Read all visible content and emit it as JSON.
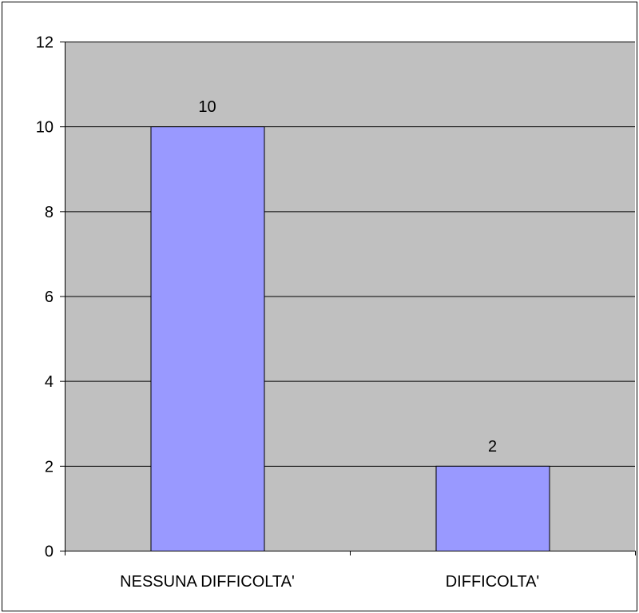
{
  "chart_data": {
    "type": "bar",
    "categories": [
      "NESSUNA DIFFICOLTA'",
      "DIFFICOLTA'"
    ],
    "values": [
      10,
      2
    ],
    "data_labels": [
      "10",
      "2"
    ],
    "title": "",
    "xlabel": "",
    "ylabel": "",
    "ylim": [
      0,
      12
    ],
    "yticks": [
      "0",
      "2",
      "4",
      "6",
      "8",
      "10",
      "12"
    ],
    "grid": true,
    "legend": "none",
    "colors": {
      "bar_fill": "#9999ff",
      "plot_background": "#c0c0c0",
      "gridline": "#000000",
      "bar_outline": "#000000"
    }
  }
}
